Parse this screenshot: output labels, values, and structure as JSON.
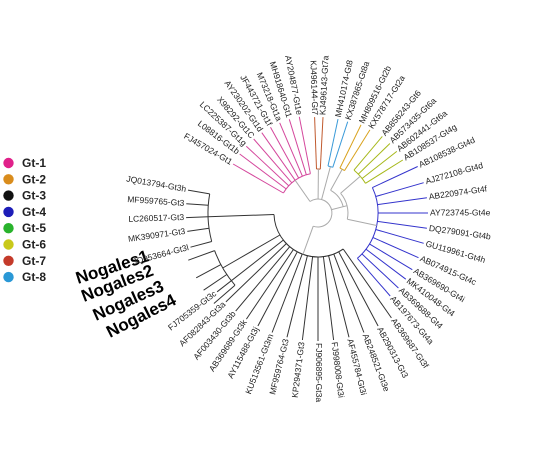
{
  "legend": [
    {
      "label": "Gt-1",
      "color": "#e0218a"
    },
    {
      "label": "Gt-2",
      "color": "#d98c1c"
    },
    {
      "label": "Gt-3",
      "color": "#111111"
    },
    {
      "label": "Gt-4",
      "color": "#1d1db8"
    },
    {
      "label": "Gt-5",
      "color": "#29b32c"
    },
    {
      "label": "Gt-6",
      "color": "#c9c91a"
    },
    {
      "label": "Gt-7",
      "color": "#c43a2a"
    },
    {
      "label": "Gt-8",
      "color": "#2a98d6"
    }
  ],
  "branch_colors": {
    "gt1": "#d4479c",
    "gt7": "#c05a2e",
    "gt8": "#3a9ad8",
    "gt2": "#d9a21c",
    "gt6": "#a6b81a",
    "gt4": "#3333cc",
    "gt3": "#333333",
    "root": "#aaaaaa"
  },
  "leaves": {
    "gt1": [
      "AY204877-Gt1e",
      "MH918640-Gt1",
      "M73218-Gt1a",
      "JF443721-Gt1f",
      "AY230202-Gt1d",
      "X98292-Gt1C",
      "LC225387-Gt1g",
      "L08816-Gt1b",
      "FJ457024-Gt1"
    ],
    "gt7": [
      "KJ496144-Gt7",
      "KJ496143-Gt7a"
    ],
    "gt8": [
      "MH410174-Gt8",
      "KX387865-Gt8a"
    ],
    "gt2": [
      "MH809516-Gt2b",
      "KX578717-Gt2a"
    ],
    "gt6": [
      "AB856243-Gt6",
      "AB573435-Gt6a",
      "AB602441-Gt6a",
      "AB108537-Gt4g"
    ],
    "gt4": [
      "AB108538-Gt4d",
      "AJ272108-Gt4d",
      "AB220974-Gt4f",
      "AY723745-Gt4e",
      "DQ279091-Gt4b",
      "GU119961-Gt4h",
      "AB074915-Gt4c",
      "AB369690-Gt4i",
      "MK410048-Gt4",
      "AB369688-Gt4",
      "AB197673-Gt4a"
    ],
    "gt3_right": [
      "AB369687-Gt3f",
      "AB290313-Gt3",
      "AB248521-Gt3e",
      "AF455784-Gt3i",
      "FJ998008-Gt3i",
      "FJ906895-Gt3a",
      "KP294371-Gt3",
      "MF959764-Gt3",
      "KU513561-Gt3m",
      "AY115488-Gt3j",
      "AB369689-Gt3k",
      "AF003430-Gt3b",
      "AF082843-Gt3a",
      "FJ705359-Gt3c"
    ],
    "nogales": [
      "Nogales1",
      "Nogales2",
      "Nogales3",
      "Nogales4"
    ],
    "gt3_left": [
      "JQ953664-Gt3l",
      "MK390971-Gt3",
      "LC260517-Gt3",
      "MF959765-Gt3",
      "JQ013794-Gt3h"
    ]
  }
}
